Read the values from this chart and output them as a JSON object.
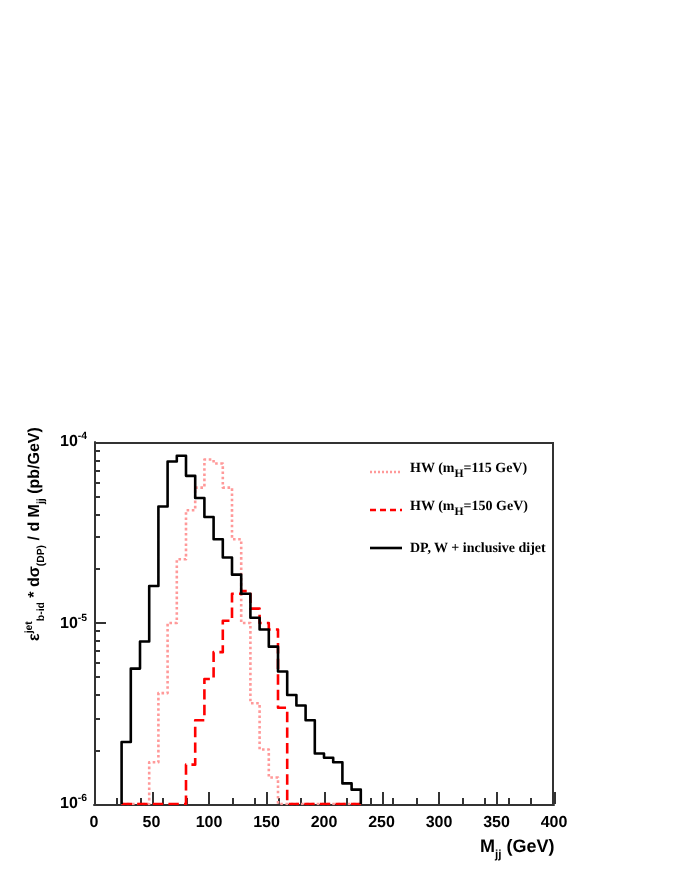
{
  "chart_data": {
    "type": "histogram",
    "xlabel": "M$_{jj}$ (GeV)",
    "ylabel": "ε$^{jet}$$_{b-id}$ * dσ$_{(DP)}$ / d M$_{jj}$ (pb/GeV)",
    "bins": [
      24,
      32,
      40,
      48,
      56,
      64,
      72,
      80,
      88,
      96,
      104,
      112,
      120,
      128,
      136,
      144,
      152,
      160,
      168,
      176,
      184,
      192,
      200,
      208,
      216,
      224,
      232
    ],
    "series": [
      {
        "name": "HW (m$_{H}$=115 GeV)",
        "color": "#ff9999",
        "line_style": "dotted",
        "values": [
          null,
          null,
          null,
          1.7e-06,
          4.1e-06,
          1e-05,
          2.25e-05,
          4.2e-05,
          5.6e-05,
          8e-05,
          7.6e-05,
          5.6e-05,
          2.9e-05,
          1e-05,
          3.6e-06,
          2e-06,
          1.4e-06,
          null,
          null,
          null,
          null,
          null,
          null,
          null,
          null,
          null
        ]
      },
      {
        "name": "HW (m$_{H}$=150 GeV)",
        "color": "#ff0000",
        "line_style": "dashed",
        "values": [
          null,
          null,
          null,
          null,
          null,
          null,
          null,
          1.65e-06,
          2.9e-06,
          4.9e-06,
          6.9e-06,
          1.03e-05,
          1.45e-05,
          1.5e-05,
          1.2e-05,
          1e-05,
          9.2e-06,
          3.4e-06,
          null,
          null,
          null,
          null,
          null,
          null,
          null,
          null
        ]
      },
      {
        "name": "DP, W + inclusive dijet",
        "color": "#000000",
        "line_style": "solid",
        "values": [
          2.2e-06,
          5.6e-06,
          7.9e-06,
          1.6e-05,
          4.4e-05,
          7.8e-05,
          8.4e-05,
          6.5e-05,
          4.9e-05,
          3.85e-05,
          2.9e-05,
          2.3e-05,
          1.85e-05,
          1.45e-05,
          1.07e-05,
          9.2e-06,
          7.4e-06,
          5.4e-06,
          4e-06,
          3.5e-06,
          2.9e-06,
          1.9e-06,
          1.8e-06,
          1.7e-06,
          1.3e-06,
          1.2e-06
        ]
      }
    ],
    "xlim": [
      0,
      400
    ],
    "xticks": [
      0,
      50,
      100,
      150,
      200,
      250,
      300,
      350,
      400
    ],
    "ylim": [
      1e-06,
      0.0001
    ],
    "yticks": [
      {
        "value": 1e-06,
        "label": "10$^{-6}$"
      },
      {
        "value": 1e-05,
        "label": "10$^{-5}$"
      },
      {
        "value": 0.0001,
        "label": "10$^{-4}$"
      }
    ],
    "log": "y",
    "grid": false,
    "legend": "top right"
  }
}
